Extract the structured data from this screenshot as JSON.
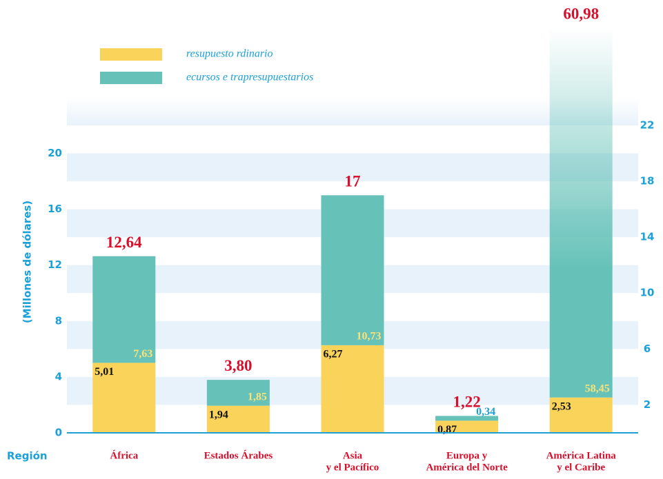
{
  "chart_data": {
    "type": "stacked_bar",
    "ylabel": "(Millones de dólares)",
    "xlabel": "Región",
    "categories": [
      [
        "África"
      ],
      [
        "Estados Árabes"
      ],
      [
        "Asia",
        "y el Pacífico"
      ],
      [
        "Europa y",
        "América del Norte"
      ],
      [
        "América Latina",
        "y el Caribe"
      ]
    ],
    "series": [
      {
        "name": "resupuesto   rdinario",
        "color": "#f9d35a",
        "values": [
          5.01,
          1.94,
          6.27,
          0.87,
          2.53
        ],
        "value_labels": [
          "5,01",
          "1,94",
          "6,27",
          "0,87",
          "2,53"
        ]
      },
      {
        "name": "ecursos e  trapresupuestarios",
        "color": "#66c2b8",
        "values": [
          7.63,
          1.85,
          10.73,
          0.34,
          58.45
        ],
        "value_labels": [
          "7,63",
          "1,85",
          "10,73",
          "0,34",
          "58,45"
        ]
      }
    ],
    "totals": [
      12.64,
      3.8,
      17,
      1.22,
      60.98
    ],
    "totals_labels": [
      "12,64",
      "3,80",
      "17",
      "1,22",
      "60,98"
    ],
    "ylim": [
      0,
      29
    ],
    "yticks": [
      0,
      4,
      8,
      12,
      16,
      20
    ],
    "y2lim": [
      0,
      29
    ],
    "y2ticks": [
      2,
      6,
      10,
      14,
      18,
      22
    ],
    "grid": true
  }
}
